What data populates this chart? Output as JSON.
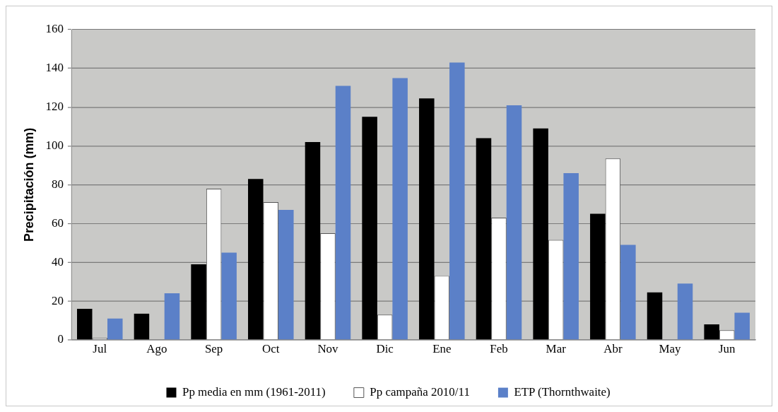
{
  "chart_data": {
    "type": "bar",
    "ylabel": "Precipitación (mm)",
    "categories": [
      "Jul",
      "Ago",
      "Sep",
      "Oct",
      "Nov",
      "Dic",
      "Ene",
      "Feb",
      "Mar",
      "Abr",
      "May",
      "Jun"
    ],
    "series": [
      {
        "name": "Pp media en mm (1961-2011)",
        "color": "#000000",
        "values": [
          16,
          13.5,
          39,
          83,
          102,
          115,
          124.5,
          104,
          109,
          65,
          24.5,
          8
        ]
      },
      {
        "name": "Pp campaña 2010/11",
        "color": "#ffffff",
        "values": [
          1,
          0,
          78,
          71,
          55,
          13,
          33,
          63,
          51.5,
          93.5,
          0,
          5
        ]
      },
      {
        "name": "ETP (Thornthwaite)",
        "color": "#5b80c8",
        "values": [
          11,
          24,
          45,
          67,
          131,
          135,
          143,
          121,
          86,
          49,
          29,
          14
        ]
      }
    ],
    "ylim": [
      0,
      160
    ],
    "yticks": [
      0,
      20,
      40,
      60,
      80,
      100,
      120,
      140,
      160
    ],
    "grid": "y",
    "legend": "bottom"
  }
}
